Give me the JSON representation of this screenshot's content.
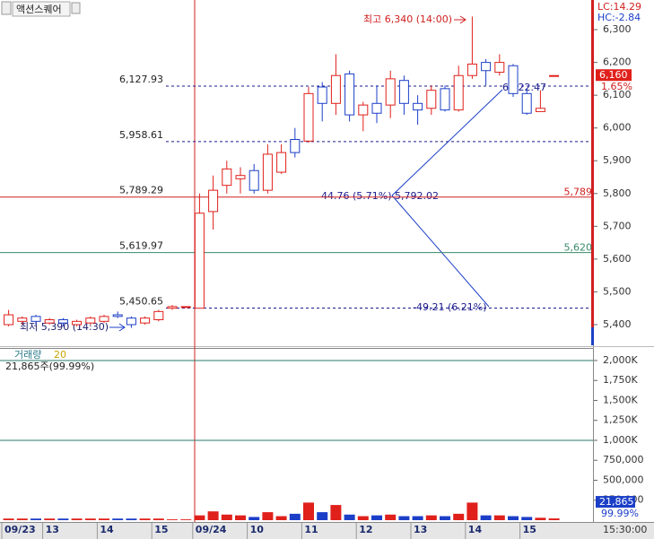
{
  "chart_data": {
    "type": "candlestick",
    "symbol": "액션스퀘어",
    "categories": [
      "09/23",
      null,
      null,
      "13",
      null,
      null,
      null,
      "14",
      null,
      null,
      null,
      "15",
      null,
      null,
      "09/24",
      null,
      null,
      null,
      "10",
      null,
      null,
      null,
      "11",
      null,
      null,
      null,
      "12",
      null,
      null,
      null,
      "13",
      null,
      null,
      null,
      "14",
      null,
      null,
      null,
      "15",
      null,
      null
    ],
    "open": [
      5400,
      5410,
      5425,
      5405,
      5415,
      5400,
      5405,
      5410,
      5430,
      5420,
      5405,
      5415,
      5450,
      5455,
      5450,
      5745,
      5825,
      5845,
      5870,
      5810,
      5865,
      5965,
      5960,
      6125,
      6075,
      6165,
      6040,
      6075,
      6070,
      6145,
      6075,
      6060,
      6120,
      6055,
      6160,
      6200,
      6170,
      6190,
      6105,
      6050,
      6160
    ],
    "high": [
      5445,
      5425,
      5430,
      5420,
      5420,
      5415,
      5425,
      5430,
      5440,
      5425,
      5425,
      5445,
      5460,
      5455,
      5800,
      5855,
      5900,
      5880,
      5890,
      5950,
      5950,
      6000,
      6125,
      6140,
      6225,
      6175,
      6080,
      6130,
      6175,
      6160,
      6100,
      6130,
      6130,
      6190,
      6340,
      6210,
      6225,
      6195,
      6120,
      6115,
      6160
    ],
    "low": [
      5395,
      5400,
      5400,
      5400,
      5395,
      5395,
      5400,
      5405,
      5420,
      5390,
      5400,
      5410,
      5445,
      5455,
      5450,
      5690,
      5800,
      5800,
      5800,
      5800,
      5860,
      5910,
      5955,
      6020,
      6040,
      6020,
      5990,
      6015,
      6030,
      6040,
      6010,
      6040,
      6050,
      6050,
      6150,
      6130,
      6160,
      6095,
      6040,
      6050,
      6160
    ],
    "close": [
      5430,
      5420,
      5410,
      5415,
      5405,
      5410,
      5420,
      5425,
      5425,
      5400,
      5420,
      5440,
      5455,
      5455,
      5740,
      5810,
      5875,
      5855,
      5810,
      5920,
      5925,
      5925,
      6105,
      6075,
      6160,
      6040,
      6070,
      6045,
      6150,
      6075,
      6055,
      6115,
      6055,
      6160,
      6195,
      6175,
      6200,
      6105,
      6045,
      6060,
      6160
    ],
    "up_color": "#e0201b",
    "down_color": "#1c3fc8",
    "ylim": [
      5337,
      6385
    ],
    "yticks": [
      {
        "value": 5400,
        "label": "5,400"
      },
      {
        "value": 5500,
        "label": "5,500"
      },
      {
        "value": 5600,
        "label": "5,600"
      },
      {
        "value": 5700,
        "label": "5,700"
      },
      {
        "value": 5800,
        "label": "5,800"
      },
      {
        "value": 5900,
        "label": "5,900"
      },
      {
        "value": 6000,
        "label": "6,000"
      },
      {
        "value": 6100,
        "label": "6,100"
      },
      {
        "value": 6200,
        "label": "6,200"
      },
      {
        "value": 6300,
        "label": "6,300"
      }
    ],
    "levels": [
      {
        "value": 6127.93,
        "label": "6,127.93",
        "color": "#1a1a8c",
        "style": "dashed"
      },
      {
        "value": 5958.61,
        "label": "5,958.61",
        "color": "#1a1a8c",
        "style": "dashed"
      },
      {
        "value": 5789.29,
        "label": "5,789.29",
        "color": "#d02020",
        "style": "solid",
        "right_label": "5,789"
      },
      {
        "value": 5619.97,
        "label": "5,619.97",
        "color": "#3a8a6a",
        "style": "solid",
        "right_label": "5,620"
      },
      {
        "value": 5450.65,
        "label": "5,450.65",
        "color": "#1a1a8c",
        "style": "dashed"
      }
    ],
    "high_label": "최고 6,340 (14:00)",
    "low_label": "최저 5,390 (14:30)",
    "annotations": [
      "6,122.47",
      "44.76 (5.71%)",
      "5,792.02",
      "-49.21 (6.21%)"
    ],
    "lc_label": "LC:14.29",
    "hc_label": "HC:-2.84",
    "price_box": "6,160",
    "change_pct": "1.65%",
    "last_time": "15:30:00",
    "volume_panel": {
      "label": "거래량",
      "ma_label": "20",
      "summary": "21,865주(99.99%)",
      "ylim": [
        0,
        2112000
      ],
      "yticks": [
        {
          "value": 250000,
          "label": "250,000"
        },
        {
          "value": 500000,
          "label": "500,000"
        },
        {
          "value": 750000,
          "label": "750,000"
        },
        {
          "value": 1000000,
          "label": "1,000K"
        },
        {
          "value": 1250000,
          "label": "1,250K"
        },
        {
          "value": 1500000,
          "label": "1,500K"
        },
        {
          "value": 1750000,
          "label": "1,750K"
        },
        {
          "value": 2000000,
          "label": "2,000K"
        }
      ],
      "hlines": [
        2000000,
        1000000
      ],
      "hline_color": "#2a7a6a",
      "values": [
        20000,
        20000,
        20000,
        20000,
        20000,
        20000,
        20000,
        20000,
        20000,
        20000,
        20000,
        20000,
        10000,
        10000,
        60000,
        110000,
        70000,
        60000,
        40000,
        100000,
        50000,
        80000,
        220000,
        100000,
        190000,
        70000,
        50000,
        60000,
        70000,
        50000,
        50000,
        60000,
        50000,
        80000,
        220000,
        60000,
        60000,
        50000,
        40000,
        30000,
        21865
      ],
      "last_box": "21,865",
      "last_share": "99.99%"
    }
  }
}
